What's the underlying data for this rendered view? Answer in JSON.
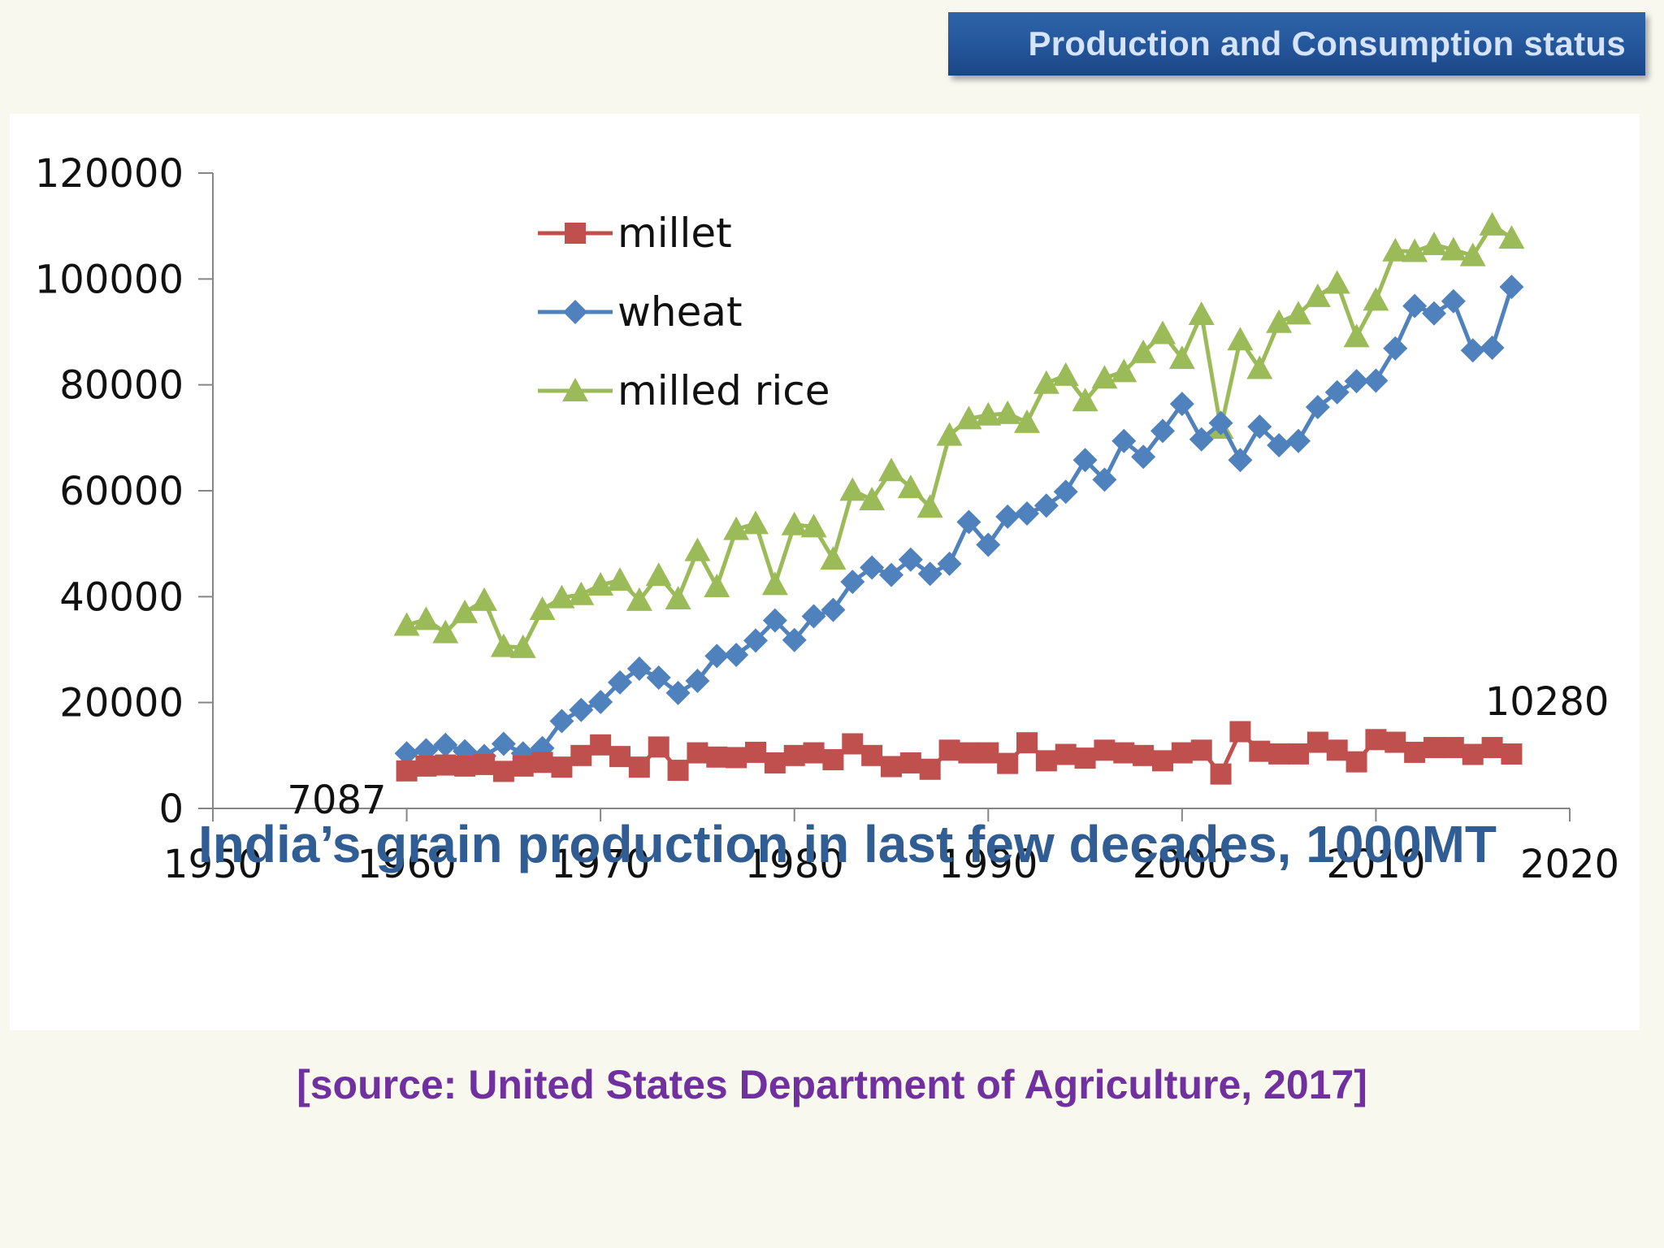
{
  "header": {
    "title": "Production and Consumption status"
  },
  "source_note": "[source: United States Department of Agriculture, 2017]",
  "colors": {
    "millet": "#c0504d",
    "wheat": "#4f81bd",
    "milled_rice": "#9bbb59",
    "title": "#2f5d94",
    "source": "#7030a0",
    "banner": "#24559a"
  },
  "chart_data": {
    "type": "line",
    "title": "India’s grain production in last few decades, 1000MT",
    "xlim": [
      1950,
      2020
    ],
    "ylim": [
      0,
      120000
    ],
    "x_ticks": [
      1950,
      1960,
      1970,
      1980,
      1990,
      2000,
      2010,
      2020
    ],
    "y_ticks": [
      0,
      20000,
      40000,
      60000,
      80000,
      100000,
      120000
    ],
    "grid": false,
    "legend_position": "top-left, inside plot",
    "x": [
      1960,
      1961,
      1962,
      1963,
      1964,
      1965,
      1966,
      1967,
      1968,
      1969,
      1970,
      1971,
      1972,
      1973,
      1974,
      1975,
      1976,
      1977,
      1978,
      1979,
      1980,
      1981,
      1982,
      1983,
      1984,
      1985,
      1986,
      1987,
      1988,
      1989,
      1990,
      1991,
      1992,
      1993,
      1994,
      1995,
      1996,
      1997,
      1998,
      1999,
      2000,
      2001,
      2002,
      2003,
      2004,
      2005,
      2006,
      2007,
      2008,
      2009,
      2010,
      2011,
      2012,
      2013,
      2014,
      2015,
      2016,
      2017
    ],
    "series": [
      {
        "name": "millet",
        "marker": "square",
        "values": [
          7087,
          8000,
          8200,
          8000,
          8300,
          7000,
          8000,
          8700,
          7800,
          10000,
          12000,
          9800,
          7800,
          11600,
          7200,
          10500,
          9700,
          9600,
          10600,
          8600,
          10000,
          10500,
          9200,
          12200,
          10000,
          7900,
          8600,
          7400,
          11000,
          10500,
          10500,
          8500,
          12400,
          9000,
          10200,
          9500,
          11000,
          10500,
          10000,
          9000,
          10500,
          11000,
          6500,
          14500,
          10800,
          10300,
          10300,
          12500,
          11000,
          8800,
          13000,
          12500,
          10600,
          11500,
          11500,
          10200,
          11500,
          10280
        ]
      },
      {
        "name": "wheat",
        "marker": "diamond",
        "values": [
          10400,
          11000,
          12000,
          10800,
          9900,
          12200,
          10400,
          11400,
          16500,
          18600,
          20100,
          23800,
          26400,
          24700,
          21800,
          24100,
          28800,
          29000,
          31700,
          35500,
          31800,
          36300,
          37500,
          42800,
          45500,
          44100,
          47000,
          44300,
          46200,
          54100,
          49800,
          55100,
          55700,
          57200,
          59800,
          65800,
          62100,
          69400,
          66400,
          71300,
          76400,
          69700,
          72800,
          65800,
          72100,
          68600,
          69400,
          75800,
          78600,
          80700,
          80800,
          86900,
          94900,
          93500,
          95800,
          86500,
          87000,
          98500
        ]
      },
      {
        "name": "milled rice",
        "marker": "triangle",
        "values": [
          34600,
          35700,
          33200,
          37000,
          39300,
          30600,
          30400,
          37600,
          39800,
          40400,
          42200,
          43100,
          39300,
          44000,
          39600,
          48700,
          41900,
          52700,
          53800,
          42300,
          53600,
          53200,
          47100,
          60100,
          58300,
          63800,
          60600,
          56900,
          70500,
          73600,
          74300,
          74600,
          72900,
          80300,
          81800,
          77000,
          81300,
          82500,
          86100,
          89700,
          85000,
          93300,
          71800,
          88500,
          83100,
          91800,
          93400,
          96700,
          99200,
          89100,
          96000,
          105300,
          105200,
          106500,
          105500,
          104400,
          110200,
          107700
        ]
      }
    ],
    "annotations": [
      {
        "text": "7087",
        "x": 1960,
        "y": 7087,
        "anchor": "below-left"
      },
      {
        "text": "10280",
        "x": 2017,
        "y": 10280,
        "anchor": "above-right"
      }
    ]
  }
}
